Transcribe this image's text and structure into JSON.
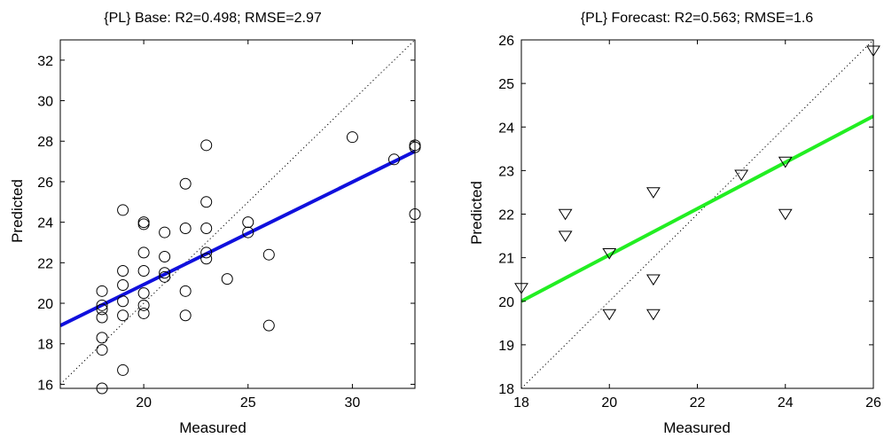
{
  "chart_data": [
    {
      "type": "scatter",
      "title": "{PL} Base: R2=0.498; RMSE=2.97",
      "xlabel": "Measured",
      "ylabel": "Predicted",
      "xlim": [
        16,
        33
      ],
      "ylim": [
        15.8,
        33
      ],
      "xticks": [
        20,
        25,
        30
      ],
      "yticks": [
        16,
        18,
        20,
        22,
        24,
        26,
        28,
        30,
        32
      ],
      "marker": "circle",
      "marker_color": "#000000",
      "fit_line": {
        "color": "#1010dd",
        "points": [
          [
            16,
            18.9
          ],
          [
            33,
            27.5
          ]
        ]
      },
      "identity_line": true,
      "grid": false,
      "points": [
        [
          18,
          15.8
        ],
        [
          18,
          17.7
        ],
        [
          18,
          18.3
        ],
        [
          18,
          19.3
        ],
        [
          18,
          19.7
        ],
        [
          18,
          19.9
        ],
        [
          18,
          20.6
        ],
        [
          19,
          16.7
        ],
        [
          19,
          19.4
        ],
        [
          19,
          20.1
        ],
        [
          19,
          20.9
        ],
        [
          19,
          21.6
        ],
        [
          19,
          24.6
        ],
        [
          20,
          19.5
        ],
        [
          20,
          19.9
        ],
        [
          20,
          20.5
        ],
        [
          20,
          21.6
        ],
        [
          20,
          22.5
        ],
        [
          20,
          23.9
        ],
        [
          20,
          24.0
        ],
        [
          21,
          21.3
        ],
        [
          21,
          21.5
        ],
        [
          21,
          22.3
        ],
        [
          21,
          23.5
        ],
        [
          22,
          19.4
        ],
        [
          22,
          20.6
        ],
        [
          22,
          23.7
        ],
        [
          22,
          25.9
        ],
        [
          23,
          22.2
        ],
        [
          23,
          22.5
        ],
        [
          23,
          23.7
        ],
        [
          23,
          25.0
        ],
        [
          23,
          27.8
        ],
        [
          24,
          21.2
        ],
        [
          25,
          23.5
        ],
        [
          25,
          24.0
        ],
        [
          26,
          18.9
        ],
        [
          26,
          22.4
        ],
        [
          30,
          28.2
        ],
        [
          32,
          27.1
        ],
        [
          33,
          27.7
        ],
        [
          33,
          27.8
        ],
        [
          33,
          24.4
        ]
      ]
    },
    {
      "type": "scatter",
      "title": "{PL} Forecast: R2=0.563; RMSE=1.6",
      "xlabel": "Measured",
      "ylabel": "Predicted",
      "xlim": [
        18,
        26
      ],
      "ylim": [
        18,
        26
      ],
      "xticks": [
        18,
        20,
        22,
        24,
        26
      ],
      "yticks": [
        18,
        19,
        20,
        21,
        22,
        23,
        24,
        25,
        26
      ],
      "marker": "triangle-down",
      "marker_color": "#000000",
      "fit_line": {
        "color": "#22ee22",
        "points": [
          [
            18,
            20.0
          ],
          [
            26,
            24.25
          ]
        ]
      },
      "identity_line": true,
      "grid": false,
      "points": [
        [
          18,
          20.3
        ],
        [
          19,
          21.5
        ],
        [
          19,
          22.0
        ],
        [
          20,
          19.7
        ],
        [
          20,
          21.1
        ],
        [
          21,
          19.7
        ],
        [
          21,
          20.5
        ],
        [
          21,
          22.5
        ],
        [
          23,
          22.9
        ],
        [
          24,
          22.0
        ],
        [
          24,
          23.2
        ],
        [
          26,
          25.75
        ]
      ]
    }
  ]
}
